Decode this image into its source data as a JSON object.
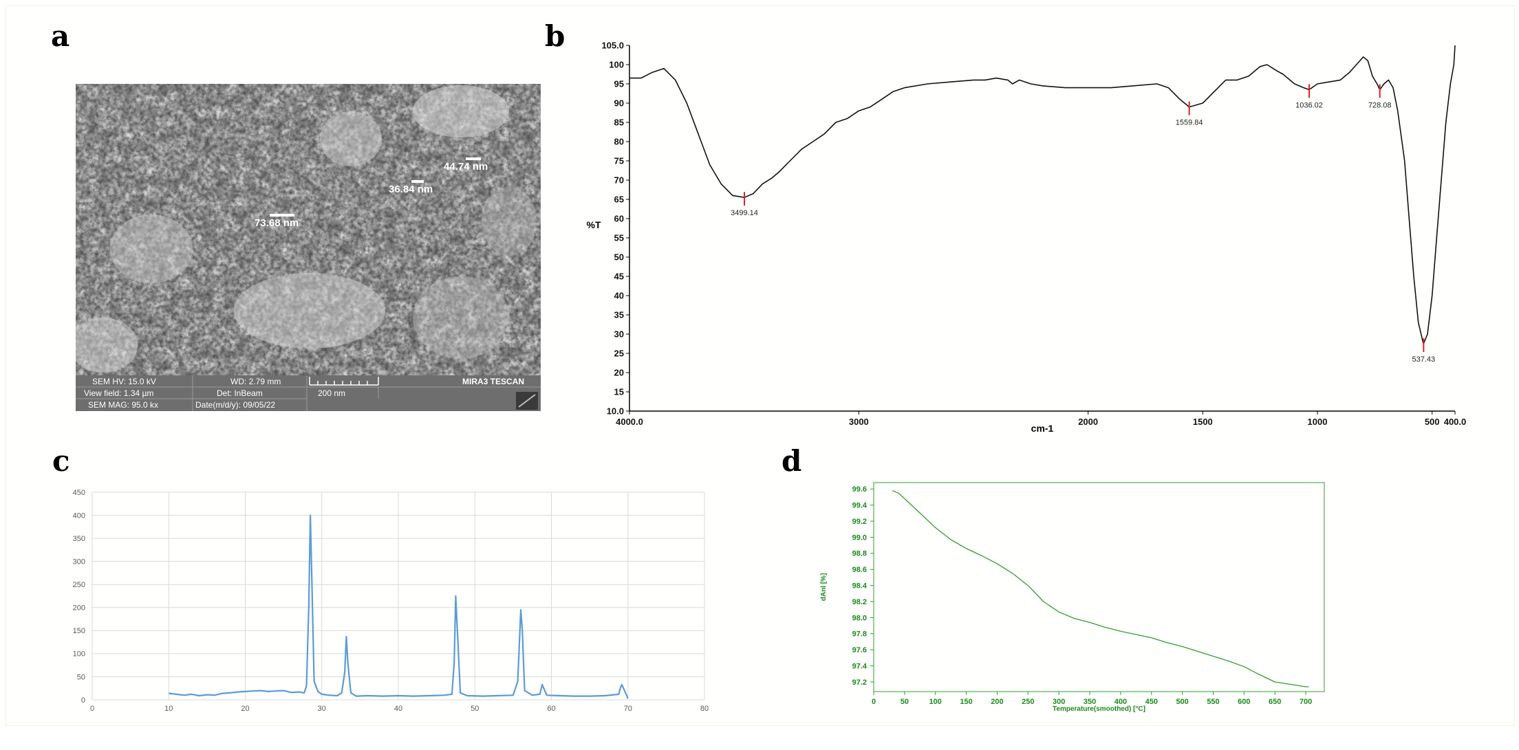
{
  "panels": [
    {
      "label": "a"
    },
    {
      "label": "b"
    },
    {
      "label": "c"
    },
    {
      "label": "d"
    }
  ],
  "sem": {
    "measurements": [
      "73.68 nm",
      "36.84 nm",
      "44.74 nm"
    ],
    "info": {
      "hv": "SEM HV: 15.0 kV",
      "wd": "WD: 2.79 mm",
      "view_field": "View field: 1.34 µm",
      "det": "Det: InBeam",
      "mag": "SEM MAG: 95.0 kx",
      "date": "Date(m/d/y): 09/05/22",
      "scale": "200 nm",
      "brand": "MIRA3 TESCAN"
    }
  },
  "chart_data": [
    {
      "id": "b",
      "type": "line",
      "title": "",
      "xlabel": "cm-1",
      "ylabel": "%T",
      "xlim": [
        4000,
        400
      ],
      "ylim": [
        10,
        105
      ],
      "x_ticks": [
        "4000.0",
        "3000",
        "2000",
        "1500",
        "1000",
        "500",
        "400.0"
      ],
      "x_tick_values": [
        4000,
        3000,
        2000,
        1500,
        1000,
        500,
        400
      ],
      "y_ticks": [
        "10.0",
        "15",
        "20",
        "25",
        "30",
        "35",
        "40",
        "45",
        "50",
        "55",
        "60",
        "65",
        "70",
        "75",
        "80",
        "85",
        "90",
        "95",
        "100",
        "105.0"
      ],
      "y_tick_values": [
        10,
        15,
        20,
        25,
        30,
        35,
        40,
        45,
        50,
        55,
        60,
        65,
        70,
        75,
        80,
        85,
        90,
        95,
        100,
        105
      ],
      "color": "#111111",
      "points": [
        [
          4000,
          96.5
        ],
        [
          3950,
          96.5
        ],
        [
          3900,
          98
        ],
        [
          3850,
          99
        ],
        [
          3800,
          96
        ],
        [
          3750,
          90
        ],
        [
          3700,
          82
        ],
        [
          3650,
          74
        ],
        [
          3600,
          69
        ],
        [
          3550,
          66
        ],
        [
          3499,
          65.5
        ],
        [
          3460,
          66.5
        ],
        [
          3420,
          69
        ],
        [
          3380,
          70.5
        ],
        [
          3350,
          72
        ],
        [
          3300,
          75
        ],
        [
          3250,
          78
        ],
        [
          3200,
          80
        ],
        [
          3150,
          82
        ],
        [
          3100,
          85
        ],
        [
          3050,
          86
        ],
        [
          3000,
          88
        ],
        [
          2950,
          89
        ],
        [
          2900,
          91
        ],
        [
          2850,
          93
        ],
        [
          2800,
          94
        ],
        [
          2700,
          95
        ],
        [
          2600,
          95.5
        ],
        [
          2500,
          96
        ],
        [
          2450,
          96
        ],
        [
          2400,
          96.5
        ],
        [
          2350,
          96
        ],
        [
          2330,
          95
        ],
        [
          2300,
          96
        ],
        [
          2250,
          95
        ],
        [
          2200,
          94.5
        ],
        [
          2100,
          94
        ],
        [
          2000,
          94
        ],
        [
          1900,
          94
        ],
        [
          1800,
          94.5
        ],
        [
          1700,
          95
        ],
        [
          1650,
          94
        ],
        [
          1600,
          91
        ],
        [
          1559,
          89
        ],
        [
          1500,
          90
        ],
        [
          1450,
          93
        ],
        [
          1400,
          96
        ],
        [
          1350,
          96
        ],
        [
          1300,
          97
        ],
        [
          1250,
          99.5
        ],
        [
          1220,
          100
        ],
        [
          1180,
          98.5
        ],
        [
          1150,
          97.5
        ],
        [
          1100,
          95
        ],
        [
          1060,
          94
        ],
        [
          1036,
          93.5
        ],
        [
          1000,
          95
        ],
        [
          950,
          95.5
        ],
        [
          900,
          96
        ],
        [
          860,
          98
        ],
        [
          830,
          100
        ],
        [
          800,
          102
        ],
        [
          780,
          101
        ],
        [
          760,
          97
        ],
        [
          740,
          95
        ],
        [
          728,
          93.5
        ],
        [
          710,
          95
        ],
        [
          690,
          96
        ],
        [
          670,
          94
        ],
        [
          650,
          88
        ],
        [
          620,
          75
        ],
        [
          600,
          60
        ],
        [
          580,
          45
        ],
        [
          560,
          33
        ],
        [
          540,
          28
        ],
        [
          537,
          27.5
        ],
        [
          520,
          30
        ],
        [
          500,
          40
        ],
        [
          480,
          55
        ],
        [
          460,
          70
        ],
        [
          440,
          85
        ],
        [
          420,
          95
        ],
        [
          405,
          100
        ],
        [
          400,
          105
        ]
      ],
      "annotations": [
        {
          "x": 3499,
          "y": 65.5,
          "label": "3499.14"
        },
        {
          "x": 1559,
          "y": 89,
          "label": "1559.84"
        },
        {
          "x": 1036,
          "y": 93.5,
          "label": "1036.02"
        },
        {
          "x": 728,
          "y": 93.5,
          "label": "728.08"
        },
        {
          "x": 537,
          "y": 27.5,
          "label": "537.43"
        }
      ],
      "annotation_color": "#e02020"
    },
    {
      "id": "c",
      "type": "line",
      "title": "",
      "xlabel": "",
      "ylabel": "",
      "xlim": [
        0,
        80
      ],
      "ylim": [
        0,
        450
      ],
      "x_ticks": [
        "0",
        "10",
        "20",
        "30",
        "40",
        "50",
        "60",
        "70",
        "80"
      ],
      "x_tick_values": [
        0,
        10,
        20,
        30,
        40,
        50,
        60,
        70,
        80
      ],
      "y_ticks": [
        "0",
        "50",
        "100",
        "150",
        "200",
        "250",
        "300",
        "350",
        "400",
        "450"
      ],
      "y_tick_values": [
        0,
        50,
        100,
        150,
        200,
        250,
        300,
        350,
        400,
        450
      ],
      "grid": true,
      "color": "#5b9bd5",
      "points": [
        [
          10,
          14
        ],
        [
          11,
          12
        ],
        [
          12,
          10
        ],
        [
          13,
          12
        ],
        [
          14,
          9
        ],
        [
          15,
          11
        ],
        [
          16,
          10
        ],
        [
          17,
          14
        ],
        [
          18,
          15
        ],
        [
          19,
          17
        ],
        [
          20,
          18
        ],
        [
          21,
          19
        ],
        [
          22,
          20
        ],
        [
          23,
          18
        ],
        [
          24,
          19
        ],
        [
          25,
          20
        ],
        [
          26,
          16
        ],
        [
          27,
          17
        ],
        [
          27.7,
          15
        ],
        [
          28,
          30
        ],
        [
          28.3,
          200
        ],
        [
          28.5,
          400
        ],
        [
          28.7,
          260
        ],
        [
          29,
          40
        ],
        [
          29.5,
          18
        ],
        [
          30,
          12
        ],
        [
          31,
          10
        ],
        [
          32,
          9
        ],
        [
          32.6,
          15
        ],
        [
          33,
          60
        ],
        [
          33.2,
          137
        ],
        [
          33.4,
          80
        ],
        [
          33.8,
          15
        ],
        [
          34.5,
          8
        ],
        [
          36,
          9
        ],
        [
          38,
          8
        ],
        [
          40,
          9
        ],
        [
          42,
          8
        ],
        [
          44,
          9
        ],
        [
          46,
          10
        ],
        [
          47,
          12
        ],
        [
          47.3,
          80
        ],
        [
          47.5,
          225
        ],
        [
          47.8,
          120
        ],
        [
          48.1,
          15
        ],
        [
          49,
          9
        ],
        [
          51,
          8
        ],
        [
          53,
          9
        ],
        [
          55,
          10
        ],
        [
          55.6,
          40
        ],
        [
          56,
          195
        ],
        [
          56.2,
          150
        ],
        [
          56.5,
          20
        ],
        [
          57.5,
          10
        ],
        [
          58.5,
          12
        ],
        [
          58.8,
          33
        ],
        [
          59,
          25
        ],
        [
          59.4,
          10
        ],
        [
          61,
          9
        ],
        [
          63,
          8
        ],
        [
          65,
          8
        ],
        [
          67,
          9
        ],
        [
          68.8,
          12
        ],
        [
          69,
          25
        ],
        [
          69.2,
          33
        ],
        [
          69.5,
          22
        ],
        [
          70,
          3
        ]
      ]
    },
    {
      "id": "d",
      "type": "line",
      "title": "",
      "xlabel": "Temperature(smoothed)  [°C]",
      "ylabel": "dAnl [%]",
      "xlim": [
        0,
        730
      ],
      "ylim": [
        97.08,
        99.68
      ],
      "x_ticks": [
        "0",
        "50",
        "100",
        "150",
        "200",
        "250",
        "300",
        "350",
        "400",
        "450",
        "500",
        "550",
        "600",
        "650",
        "700"
      ],
      "x_tick_values": [
        0,
        50,
        100,
        150,
        200,
        250,
        300,
        350,
        400,
        450,
        500,
        550,
        600,
        650,
        700
      ],
      "y_ticks": [
        "97.2",
        "97.4",
        "97.6",
        "97.8",
        "98.0",
        "98.2",
        "98.4",
        "98.6",
        "98.8",
        "99.0",
        "99.2",
        "99.4",
        "99.6"
      ],
      "y_tick_values": [
        97.2,
        97.4,
        97.6,
        97.8,
        98.0,
        98.2,
        98.4,
        98.6,
        98.8,
        99.0,
        99.2,
        99.4,
        99.6
      ],
      "color": "#2e9e2e",
      "label_color": "#1a8a1a",
      "points": [
        [
          30,
          99.58
        ],
        [
          40,
          99.55
        ],
        [
          50,
          99.48
        ],
        [
          75,
          99.3
        ],
        [
          100,
          99.12
        ],
        [
          125,
          98.97
        ],
        [
          150,
          98.86
        ],
        [
          175,
          98.77
        ],
        [
          200,
          98.67
        ],
        [
          225,
          98.55
        ],
        [
          250,
          98.4
        ],
        [
          275,
          98.2
        ],
        [
          300,
          98.07
        ],
        [
          325,
          97.99
        ],
        [
          350,
          97.94
        ],
        [
          375,
          97.88
        ],
        [
          400,
          97.83
        ],
        [
          425,
          97.79
        ],
        [
          450,
          97.75
        ],
        [
          475,
          97.69
        ],
        [
          500,
          97.64
        ],
        [
          525,
          97.58
        ],
        [
          550,
          97.52
        ],
        [
          575,
          97.46
        ],
        [
          600,
          97.39
        ],
        [
          625,
          97.29
        ],
        [
          650,
          97.2
        ],
        [
          675,
          97.17
        ],
        [
          700,
          97.14
        ],
        [
          705,
          97.14
        ]
      ]
    }
  ]
}
